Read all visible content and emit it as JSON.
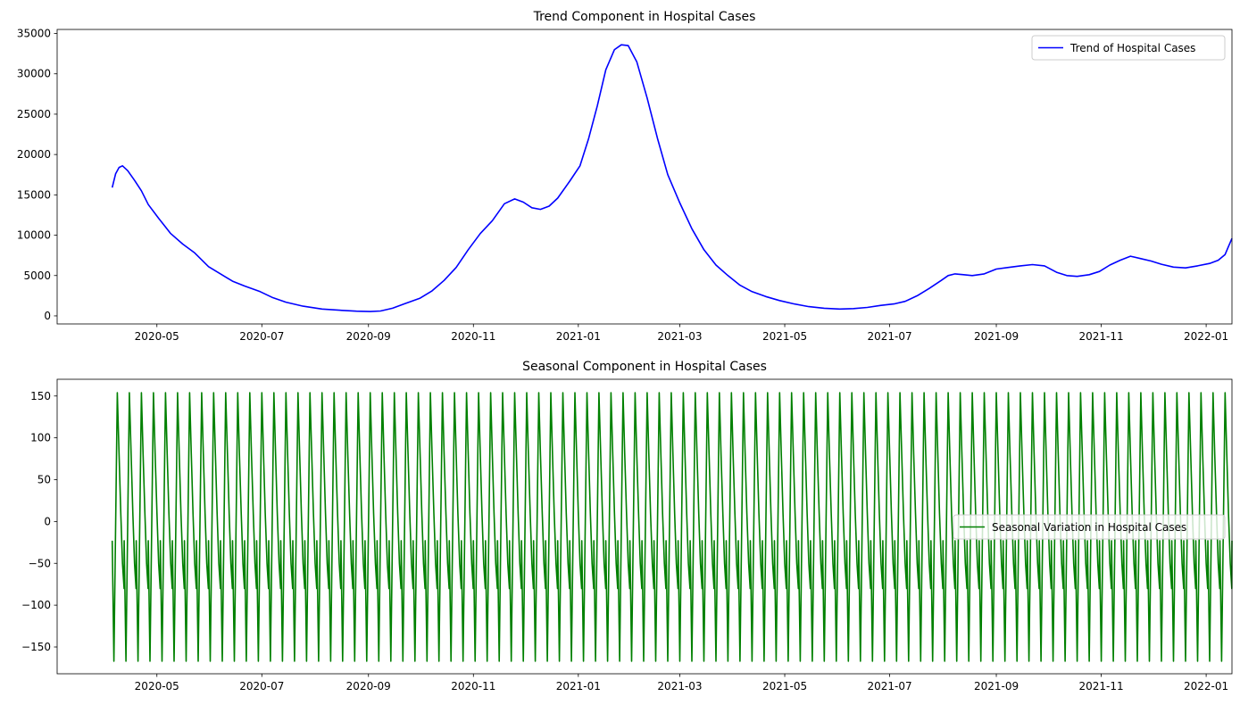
{
  "colors": {
    "trend": "#0000ff",
    "seasonal": "#008000"
  },
  "chart_data": [
    {
      "type": "line",
      "title": "Trend Component in Hospital Cases",
      "xlabel": "",
      "ylabel": "",
      "x_ticks": [
        "2020-05",
        "2020-07",
        "2020-09",
        "2020-11",
        "2021-01",
        "2021-03",
        "2021-05",
        "2021-07",
        "2021-09",
        "2021-11",
        "2022-01"
      ],
      "y_ticks": [
        "0",
        "5000",
        "10000",
        "15000",
        "20000",
        "25000",
        "30000",
        "35000"
      ],
      "xlim": [
        "2020-03-04",
        "2022-01-16"
      ],
      "ylim": [
        -1000,
        35500
      ],
      "legend": "upper right",
      "grid": false,
      "series": [
        {
          "name": "Trend of Hospital Cases",
          "color": "#0000ff",
          "points": [
            [
              "2020-04-05",
              15900
            ],
            [
              "2020-04-07",
              17600
            ],
            [
              "2020-04-09",
              18400
            ],
            [
              "2020-04-11",
              18600
            ],
            [
              "2020-04-14",
              18000
            ],
            [
              "2020-04-18",
              16800
            ],
            [
              "2020-04-22",
              15500
            ],
            [
              "2020-04-26",
              13800
            ],
            [
              "2020-05-02",
              12100
            ],
            [
              "2020-05-09",
              10200
            ],
            [
              "2020-05-16",
              8900
            ],
            [
              "2020-05-23",
              7800
            ],
            [
              "2020-05-31",
              6100
            ],
            [
              "2020-06-07",
              5200
            ],
            [
              "2020-06-14",
              4300
            ],
            [
              "2020-06-21",
              3700
            ],
            [
              "2020-06-30",
              3000
            ],
            [
              "2020-07-07",
              2300
            ],
            [
              "2020-07-15",
              1700
            ],
            [
              "2020-07-25",
              1200
            ],
            [
              "2020-08-05",
              850
            ],
            [
              "2020-08-15",
              700
            ],
            [
              "2020-08-25",
              580
            ],
            [
              "2020-09-02",
              540
            ],
            [
              "2020-09-08",
              600
            ],
            [
              "2020-09-15",
              950
            ],
            [
              "2020-09-22",
              1500
            ],
            [
              "2020-10-01",
              2200
            ],
            [
              "2020-10-08",
              3100
            ],
            [
              "2020-10-15",
              4400
            ],
            [
              "2020-10-22",
              6000
            ],
            [
              "2020-10-29",
              8200
            ],
            [
              "2020-11-05",
              10200
            ],
            [
              "2020-11-12",
              11800
            ],
            [
              "2020-11-19",
              13900
            ],
            [
              "2020-11-25",
              14500
            ],
            [
              "2020-11-30",
              14100
            ],
            [
              "2020-12-05",
              13400
            ],
            [
              "2020-12-10",
              13200
            ],
            [
              "2020-12-15",
              13600
            ],
            [
              "2020-12-20",
              14600
            ],
            [
              "2020-12-27",
              16700
            ],
            [
              "2021-01-02",
              18600
            ],
            [
              "2021-01-07",
              22000
            ],
            [
              "2021-01-12",
              26000
            ],
            [
              "2021-01-17",
              30500
            ],
            [
              "2021-01-22",
              33000
            ],
            [
              "2021-01-26",
              33600
            ],
            [
              "2021-01-30",
              33500
            ],
            [
              "2021-02-04",
              31500
            ],
            [
              "2021-02-10",
              27000
            ],
            [
              "2021-02-16",
              22000
            ],
            [
              "2021-02-22",
              17500
            ],
            [
              "2021-03-01",
              14000
            ],
            [
              "2021-03-08",
              10800
            ],
            [
              "2021-03-15",
              8200
            ],
            [
              "2021-03-22",
              6300
            ],
            [
              "2021-03-29",
              5000
            ],
            [
              "2021-04-05",
              3800
            ],
            [
              "2021-04-12",
              3000
            ],
            [
              "2021-04-20",
              2400
            ],
            [
              "2021-04-28",
              1900
            ],
            [
              "2021-05-06",
              1500
            ],
            [
              "2021-05-15",
              1150
            ],
            [
              "2021-05-24",
              950
            ],
            [
              "2021-06-02",
              850
            ],
            [
              "2021-06-10",
              900
            ],
            [
              "2021-06-18",
              1050
            ],
            [
              "2021-06-26",
              1300
            ],
            [
              "2021-07-04",
              1500
            ],
            [
              "2021-07-10",
              1800
            ],
            [
              "2021-07-17",
              2500
            ],
            [
              "2021-07-24",
              3400
            ],
            [
              "2021-07-31",
              4400
            ],
            [
              "2021-08-04",
              5000
            ],
            [
              "2021-08-08",
              5200
            ],
            [
              "2021-08-13",
              5100
            ],
            [
              "2021-08-18",
              5000
            ],
            [
              "2021-08-25",
              5200
            ],
            [
              "2021-09-01",
              5800
            ],
            [
              "2021-09-08",
              6000
            ],
            [
              "2021-09-15",
              6200
            ],
            [
              "2021-09-22",
              6350
            ],
            [
              "2021-09-29",
              6200
            ],
            [
              "2021-10-06",
              5400
            ],
            [
              "2021-10-12",
              5000
            ],
            [
              "2021-10-18",
              4900
            ],
            [
              "2021-10-25",
              5100
            ],
            [
              "2021-10-31",
              5500
            ],
            [
              "2021-11-06",
              6300
            ],
            [
              "2021-11-12",
              6900
            ],
            [
              "2021-11-18",
              7400
            ],
            [
              "2021-11-24",
              7100
            ],
            [
              "2021-11-30",
              6800
            ],
            [
              "2021-12-06",
              6400
            ],
            [
              "2021-12-13",
              6050
            ],
            [
              "2021-12-20",
              5950
            ],
            [
              "2021-12-27",
              6200
            ],
            [
              "2022-01-03",
              6500
            ],
            [
              "2022-01-08",
              6900
            ],
            [
              "2022-01-12",
              7600
            ],
            [
              "2022-01-14",
              8600
            ],
            [
              "2022-01-16",
              9600
            ]
          ]
        }
      ]
    },
    {
      "type": "line",
      "title": "Seasonal Component in Hospital Cases",
      "xlabel": "",
      "ylabel": "",
      "x_ticks": [
        "2020-05",
        "2020-07",
        "2020-09",
        "2020-11",
        "2021-01",
        "2021-03",
        "2021-05",
        "2021-07",
        "2021-09",
        "2021-11",
        "2022-01"
      ],
      "y_ticks": [
        "−150",
        "−100",
        "−50",
        "0",
        "50",
        "100",
        "150"
      ],
      "xlim": [
        "2020-03-04",
        "2022-01-16"
      ],
      "ylim": [
        -182,
        170
      ],
      "legend": "center right",
      "grid": false,
      "series": [
        {
          "name": "Seasonal Variation in Hospital Cases",
          "color": "#008000",
          "start": "2020-04-05",
          "end": "2022-01-16",
          "period_days": 7,
          "cycle_values": [
            -23,
            -167,
            154,
            80,
            10,
            -50,
            -80
          ],
          "cycle_days": [
            0,
            1,
            3,
            4,
            5,
            6,
            6.9
          ]
        }
      ]
    }
  ]
}
